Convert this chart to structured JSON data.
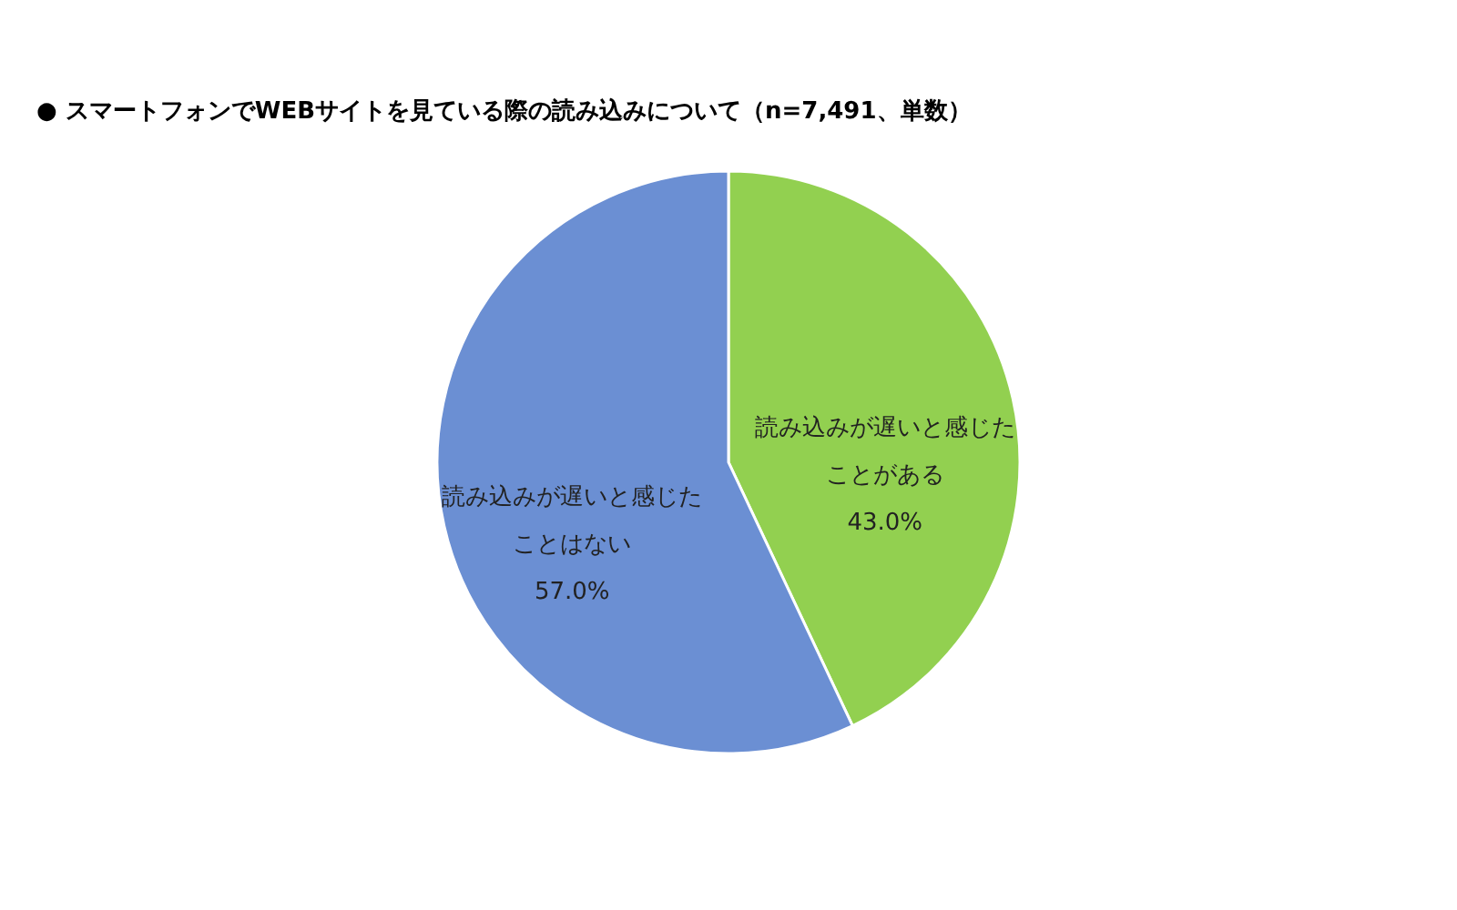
{
  "chart_data": {
    "type": "pie",
    "title": "●  スマートフォンでWEBサイトを見ている際の読み込みについて（n=7,491、単数）",
    "categories": [
      "読み込みが遅いと感じたことがある",
      "読み込みが遅いと感じたことはない"
    ],
    "values": [
      43.0,
      57.0
    ],
    "colors": [
      "#92d050",
      "#6b8fd3"
    ],
    "value_labels": [
      "43.0%",
      "57.0%"
    ],
    "legend": false
  }
}
